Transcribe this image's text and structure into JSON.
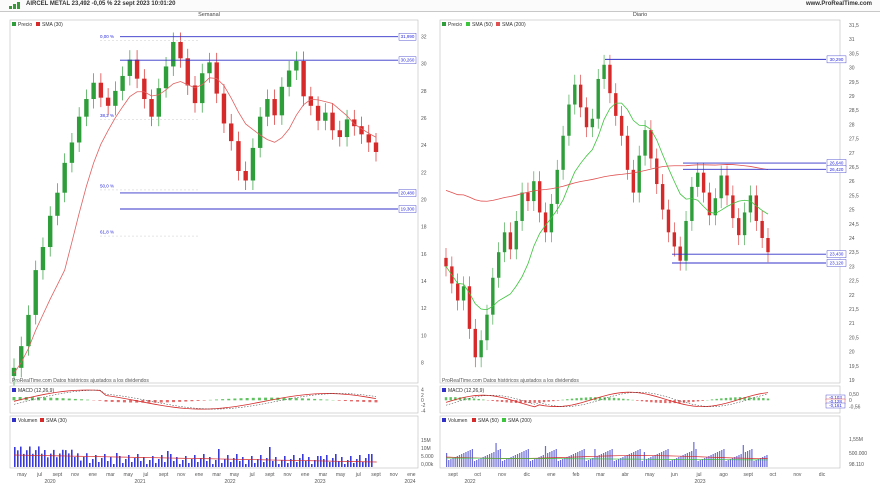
{
  "header": {
    "title": "AIRCEL METAL 23,492 -0,05 % 22 sept 2023 10:01:20",
    "site": "www.ProRealTime.com"
  },
  "panels": {
    "weekly": {
      "title": "Semanal",
      "legend_price": "Precio",
      "legend_sma": "SMA (30)",
      "disclaimer": "ProRealTime.com Datos históricos ajustados a los dividendos",
      "macd_label": "MACD (12,26,9)",
      "volume_label": "Volumen",
      "volume_sma_label": "SMA (30)",
      "pct_labels": [
        "0,00 %",
        "38,2 %",
        "50,0 %",
        "61,8 %"
      ],
      "levels": [
        "31,990",
        "30,260",
        "20,480",
        "19,300"
      ],
      "y_ticks": [
        "32",
        "30",
        "28",
        "26",
        "24",
        "22",
        "20",
        "18",
        "16",
        "14",
        "12",
        "10",
        "8"
      ],
      "macd_ticks": [
        "4",
        "2",
        "0",
        "-2",
        "-4"
      ],
      "volume_ticks": [
        "15M",
        "10M",
        "5.000",
        "0,00k"
      ],
      "x_labels": [
        "may",
        "jul",
        "sept",
        "nov",
        "ene",
        "mar",
        "may",
        "jul",
        "sept",
        "nov",
        "ene",
        "mar",
        "may",
        "jul",
        "sept",
        "nov",
        "ene",
        "mar",
        "may",
        "jul",
        "sept",
        "nov",
        "ene"
      ],
      "year_labels": [
        "2020",
        "2021",
        "2022",
        "2023",
        "2024"
      ]
    },
    "daily": {
      "title": "Diario",
      "legend_price": "Precio",
      "legend_sma50": "SMA (50)",
      "legend_sma200": "SMA (200)",
      "disclaimer": "ProRealTime.com Datos históricos ajustados a los dividendos",
      "macd_label": "MACD (12,26,9)",
      "volume_label": "Volumen",
      "volume_sma50_label": "SMA (50)",
      "volume_sma200_label": "SMA (200)",
      "levels": [
        "30,290",
        "26,640",
        "26,420",
        "23,430",
        "23,120"
      ],
      "y_ticks": [
        "31,5",
        "31",
        "30,5",
        "30",
        "29,5",
        "29",
        "28,5",
        "28",
        "27,5",
        "27",
        "26,5",
        "26",
        "25,5",
        "25",
        "24,5",
        "24",
        "23,5",
        "23",
        "22,5",
        "22",
        "21,5",
        "21",
        "20,5",
        "20",
        "19,5",
        "19"
      ],
      "macd_ticks": [
        "0,50",
        "0",
        "-0,56"
      ],
      "macd_values": [
        "-0,103",
        "-0,128",
        "-0,161"
      ],
      "volume_ticks": [
        "1,55M",
        "500.000",
        "98.110"
      ],
      "x_labels": [
        "sept",
        "oct",
        "nov",
        "dic",
        "ene",
        "feb",
        "mar",
        "abr",
        "may",
        "jun",
        "jul",
        "ago",
        "sept",
        "oct",
        "nov",
        "dic"
      ],
      "year_labels": [
        "2022",
        "2023"
      ]
    }
  },
  "chart_data": [
    {
      "type": "candlestick",
      "title": "Semanal",
      "series": [
        {
          "name": "Precio",
          "approx_close": [
            7.6,
            9.2,
            11.5,
            14.8,
            16.5,
            18.8,
            20.5,
            22.7,
            24.2,
            26.1,
            27.4,
            28.6,
            27.5,
            26.9,
            28.0,
            29.1,
            30.3,
            28.9,
            27.4,
            26.1,
            28.2,
            29.8,
            31.6,
            30.4,
            28.4,
            27.1,
            29.3,
            30.1,
            27.8,
            25.6,
            24.3,
            22.1,
            21.4,
            23.8,
            26.1,
            27.4,
            26.2,
            28.3,
            29.5,
            30.2,
            27.6,
            26.9,
            25.8,
            26.4,
            25.1,
            24.6,
            25.9,
            25.4,
            24.8,
            24.2,
            23.5
          ]
        },
        {
          "name": "SMA (30)"
        }
      ],
      "levels": [
        31.99,
        30.26,
        20.48,
        19.3
      ],
      "y_range": [
        7,
        33
      ]
    },
    {
      "type": "candlestick",
      "title": "Diario",
      "series": [
        {
          "name": "Precio",
          "approx_close": [
            23.0,
            22.4,
            21.8,
            22.3,
            20.8,
            19.8,
            20.4,
            21.3,
            22.6,
            23.5,
            24.2,
            23.6,
            24.6,
            25.6,
            25.3,
            26.0,
            24.9,
            24.2,
            25.2,
            26.4,
            27.6,
            28.7,
            29.4,
            28.6,
            27.9,
            28.2,
            29.6,
            30.1,
            29.1,
            28.3,
            27.6,
            26.4,
            25.6,
            26.9,
            27.8,
            26.8,
            25.9,
            25.0,
            24.2,
            23.7,
            23.2,
            24.6,
            25.8,
            26.3,
            25.6,
            24.8,
            25.4,
            26.2,
            25.5,
            24.7,
            24.1,
            24.9,
            25.5,
            24.6,
            24.0,
            23.5
          ]
        },
        {
          "name": "SMA (50)"
        },
        {
          "name": "SMA (200)"
        }
      ],
      "levels": [
        30.29,
        26.64,
        26.42,
        23.43,
        23.12
      ],
      "y_range": [
        19,
        31.5
      ]
    }
  ]
}
